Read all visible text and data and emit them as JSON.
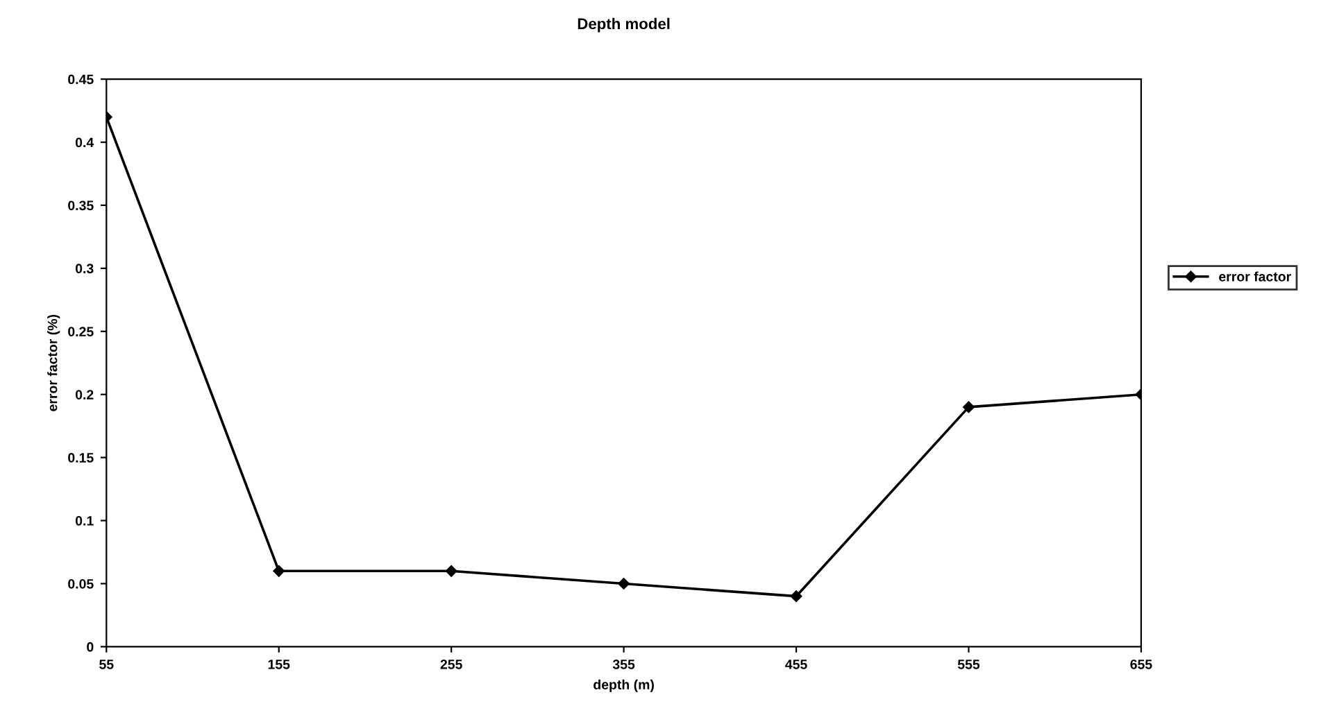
{
  "chart_data": {
    "type": "line",
    "title": "Depth model",
    "xlabel": "depth (m)",
    "ylabel": "error factor (%)",
    "x": [
      55,
      155,
      255,
      355,
      455,
      555,
      655
    ],
    "series": [
      {
        "name": "error factor",
        "color": "#000000",
        "values": [
          0.42,
          0.06,
          0.06,
          0.05,
          0.04,
          0.19,
          0.2
        ]
      }
    ],
    "xlim": [
      55,
      655
    ],
    "xticks": [
      55,
      155,
      255,
      355,
      455,
      555,
      655
    ],
    "ylim": [
      0,
      0.45
    ],
    "yticks": [
      0,
      0.05,
      0.1,
      0.15,
      0.2,
      0.25,
      0.3,
      0.35,
      0.4,
      0.45
    ],
    "grid": false,
    "legend": "right",
    "marker": "diamond",
    "line_style": "solid"
  }
}
